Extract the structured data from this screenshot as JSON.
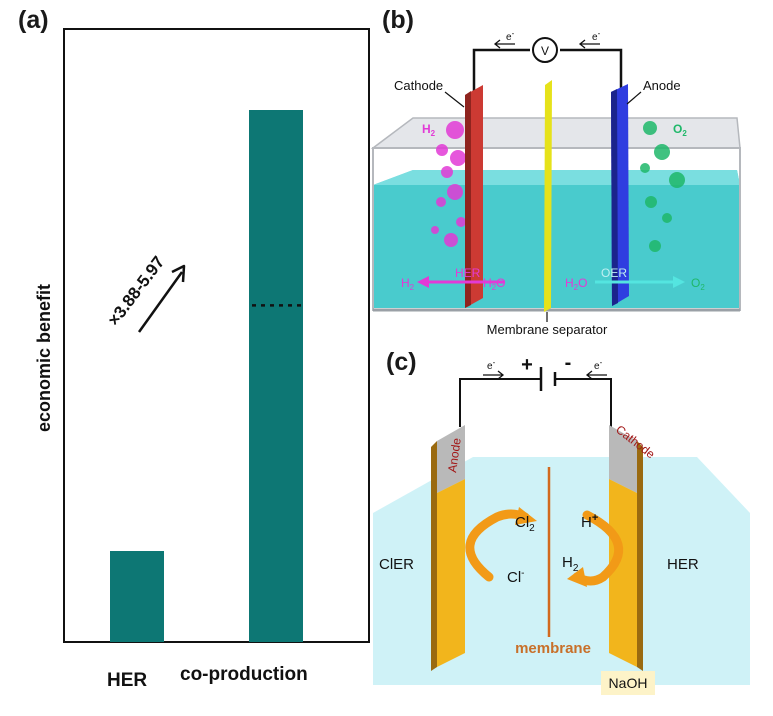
{
  "panels": {
    "a": {
      "label": "(a)"
    },
    "b": {
      "label": "(b)"
    },
    "c": {
      "label": "(c)"
    }
  },
  "chart_data": {
    "type": "bar",
    "categories": [
      "HER",
      "co-production"
    ],
    "values": [
      0.148,
      0.87
    ],
    "ylabel": "economic benefit",
    "ylim": [
      0,
      1
    ],
    "reference_level": 0.55,
    "annotation": "×3.88-5.97",
    "bar_color": "#0d7774"
  },
  "panel_b": {
    "cathode": "Cathode",
    "anode": "Anode",
    "voltmeter": "V",
    "electron": "e",
    "h2_label": "H",
    "o2_label": "O",
    "her": "HER",
    "oer": "OER",
    "h2o_left": "H",
    "h2o_right": "H",
    "separator": "Membrane separator",
    "colors": {
      "cathode": "#cc3a33",
      "anode": "#2f3de0",
      "electrolyte": "#39c7c9",
      "membrane": "#e6e21a",
      "h2": "#e23ad6",
      "o2": "#1fb86a"
    }
  },
  "panel_c": {
    "plus": "+",
    "minus": "-",
    "electron": "e",
    "anode": "Anode",
    "cathode": "Cathode",
    "cl2": "Cl",
    "cl_minus": "Cl",
    "h_plus": "H",
    "h2": "H",
    "cler": "ClER",
    "her": "HER",
    "membrane": "membrane",
    "naoh": "NaOH",
    "colors": {
      "electrode": "#f2b51c",
      "cap": "#b9b9b9",
      "tank": "#bfeef4",
      "membrane": "#d2691e",
      "arrow": "#f29a17"
    }
  }
}
